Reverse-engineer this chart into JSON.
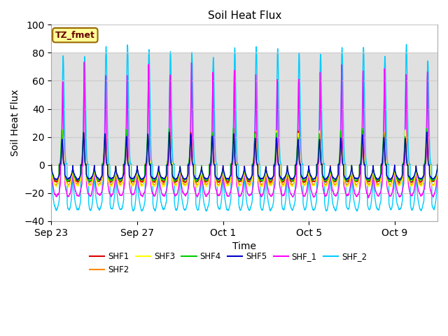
{
  "title": "Soil Heat Flux",
  "xlabel": "Time",
  "ylabel": "Soil Heat Flux",
  "ylim": [
    -40,
    100
  ],
  "yticks": [
    -40,
    -20,
    0,
    20,
    40,
    60,
    80,
    100
  ],
  "xtick_labels": [
    "Sep 23",
    "Sep 27",
    "Oct 1",
    "Oct 5",
    "Oct 9"
  ],
  "xtick_positions": [
    0,
    4,
    8,
    12,
    16
  ],
  "shade_ymin": 0,
  "shade_ymax": 80,
  "annotation_text": "TZ_fmet",
  "annotation_bg": "#ffff99",
  "annotation_border": "#996600",
  "series_colors": {
    "SHF1": "#dd0000",
    "SHF2": "#ff8800",
    "SHF3": "#ffff00",
    "SHF4": "#00cc00",
    "SHF5": "#0000cc",
    "SHF_1": "#ff00ff",
    "SHF_2": "#00ccff"
  },
  "grid_color": "#cccccc",
  "n_days": 18,
  "points_per_day": 288
}
